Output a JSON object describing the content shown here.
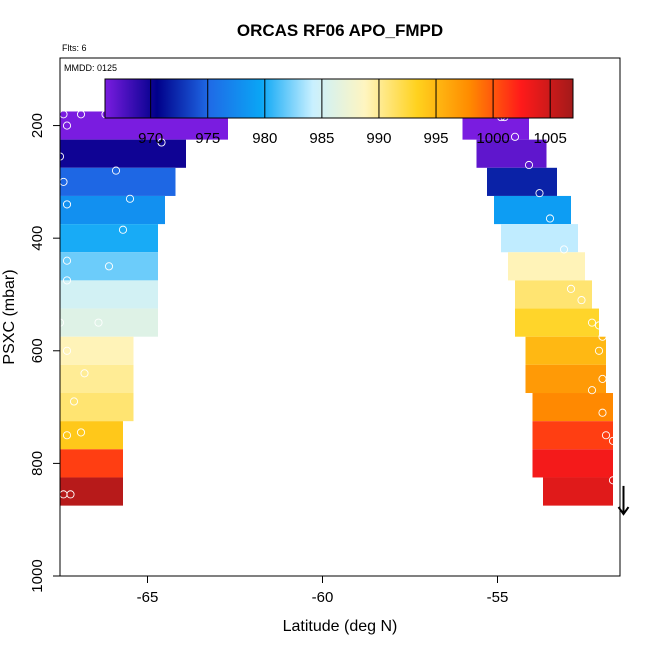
{
  "chart_data": {
    "type": "heatmap",
    "title": "ORCAS RF06 APO_FMPD",
    "flts_note": "Flts: 6",
    "date_note": "MMDD: 0125",
    "xlabel": "Latitude (deg N)",
    "ylabel": "PSXC (mbar)",
    "xlim": [
      -67.5,
      -51.5
    ],
    "ylim": [
      1000,
      80
    ],
    "x_ticks": [
      -65,
      -60,
      -55
    ],
    "x_tick_labels": [
      "-65",
      "-60",
      "-55"
    ],
    "y_ticks": [
      200,
      400,
      600,
      800,
      1000
    ],
    "y_tick_labels": [
      "200",
      "400",
      "600",
      "800",
      "1000"
    ],
    "colorbar": {
      "range": [
        966,
        1007
      ],
      "ticks": [
        970,
        975,
        980,
        985,
        990,
        995,
        1000,
        1005
      ],
      "tick_labels": [
        "970",
        "975",
        "980",
        "985",
        "990",
        "995",
        "1000",
        "1005"
      ],
      "stops": [
        "#7a1ce0",
        "#00008a",
        "#1f6ae6",
        "#0aa6f5",
        "#c9f0ff",
        "#fff5c0",
        "#ffd21e",
        "#ff8c00",
        "#ff1a1a",
        "#a31a1a"
      ]
    },
    "layers": [
      {
        "p_top": 175,
        "p_bot": 225,
        "left": {
          "x0": -67.5,
          "x1": -62.7,
          "v": 966
        },
        "right": {
          "x0": -56.0,
          "x1": -54.1,
          "v": 966
        }
      },
      {
        "p_top": 225,
        "p_bot": 275,
        "left": {
          "x0": -67.5,
          "x1": -63.9,
          "v": 970
        },
        "right": {
          "x0": -55.6,
          "x1": -53.6,
          "v": 967
        }
      },
      {
        "p_top": 275,
        "p_bot": 325,
        "left": {
          "x0": -67.5,
          "x1": -64.2,
          "v": 975
        },
        "right": {
          "x0": -55.3,
          "x1": -53.3,
          "v": 972
        }
      },
      {
        "p_top": 325,
        "p_bot": 375,
        "left": {
          "x0": -67.5,
          "x1": -64.5,
          "v": 978
        },
        "right": {
          "x0": -55.1,
          "x1": -52.9,
          "v": 979
        }
      },
      {
        "p_top": 375,
        "p_bot": 425,
        "left": {
          "x0": -67.5,
          "x1": -64.7,
          "v": 980
        },
        "right": {
          "x0": -54.9,
          "x1": -52.7,
          "v": 984
        }
      },
      {
        "p_top": 425,
        "p_bot": 475,
        "left": {
          "x0": -67.5,
          "x1": -64.7,
          "v": 982
        },
        "right": {
          "x0": -54.7,
          "x1": -52.5,
          "v": 989
        }
      },
      {
        "p_top": 475,
        "p_bot": 525,
        "left": {
          "x0": -67.5,
          "x1": -64.7,
          "v": 985
        },
        "right": {
          "x0": -54.5,
          "x1": -52.3,
          "v": 991
        }
      },
      {
        "p_top": 525,
        "p_bot": 575,
        "left": {
          "x0": -67.5,
          "x1": -64.7,
          "v": 986
        },
        "right": {
          "x0": -54.5,
          "x1": -52.1,
          "v": 993
        }
      },
      {
        "p_top": 575,
        "p_bot": 625,
        "left": {
          "x0": -67.5,
          "x1": -65.4,
          "v": 989
        },
        "right": {
          "x0": -54.2,
          "x1": -51.9,
          "v": 995
        }
      },
      {
        "p_top": 625,
        "p_bot": 675,
        "left": {
          "x0": -67.5,
          "x1": -65.4,
          "v": 990
        },
        "right": {
          "x0": -54.2,
          "x1": -51.9,
          "v": 997
        }
      },
      {
        "p_top": 675,
        "p_bot": 725,
        "left": {
          "x0": -67.5,
          "x1": -65.4,
          "v": 991
        },
        "right": {
          "x0": -54.0,
          "x1": -51.7,
          "v": 998
        }
      },
      {
        "p_top": 725,
        "p_bot": 775,
        "left": {
          "x0": -67.5,
          "x1": -65.7,
          "v": 994
        },
        "right": {
          "x0": -54.0,
          "x1": -51.7,
          "v": 1001
        }
      },
      {
        "p_top": 775,
        "p_bot": 825,
        "left": {
          "x0": -67.5,
          "x1": -65.7,
          "v": 1001
        },
        "right": {
          "x0": -54.0,
          "x1": -51.7,
          "v": 1003
        }
      },
      {
        "p_top": 825,
        "p_bot": 875,
        "left": {
          "x0": -67.5,
          "x1": -65.7,
          "v": 1006
        },
        "right": {
          "x0": -53.7,
          "x1": -51.7,
          "v": 1004
        }
      }
    ],
    "points": [
      [
        -67.4,
        180
      ],
      [
        -67.3,
        200
      ],
      [
        -66.9,
        180
      ],
      [
        -66.2,
        180
      ],
      [
        -65.7,
        180
      ],
      [
        -65.0,
        180
      ],
      [
        -64.5,
        180
      ],
      [
        -64.2,
        180
      ],
      [
        -64.0,
        180
      ],
      [
        -63.7,
        180
      ],
      [
        -63.6,
        180
      ],
      [
        -63.5,
        180
      ],
      [
        -63.4,
        180
      ],
      [
        -63.3,
        180
      ],
      [
        -63.2,
        180
      ],
      [
        -63.1,
        180
      ],
      [
        -63.0,
        180
      ],
      [
        -64.6,
        230
      ],
      [
        -67.5,
        255
      ],
      [
        -65.9,
        280
      ],
      [
        -67.4,
        300
      ],
      [
        -67.3,
        340
      ],
      [
        -65.5,
        330
      ],
      [
        -65.7,
        385
      ],
      [
        -67.3,
        440
      ],
      [
        -66.1,
        450
      ],
      [
        -67.3,
        475
      ],
      [
        -67.5,
        550
      ],
      [
        -66.4,
        550
      ],
      [
        -67.3,
        600
      ],
      [
        -66.8,
        640
      ],
      [
        -67.1,
        690
      ],
      [
        -67.3,
        750
      ],
      [
        -66.9,
        745
      ],
      [
        -67.4,
        855
      ],
      [
        -67.2,
        855
      ],
      [
        -56.2,
        180
      ],
      [
        -56.1,
        180
      ],
      [
        -55.5,
        180
      ],
      [
        -55.3,
        180
      ],
      [
        -54.9,
        185
      ],
      [
        -54.8,
        185
      ],
      [
        -54.5,
        220
      ],
      [
        -54.1,
        270
      ],
      [
        -53.8,
        320
      ],
      [
        -53.5,
        365
      ],
      [
        -53.1,
        420
      ],
      [
        -52.9,
        490
      ],
      [
        -52.6,
        510
      ],
      [
        -52.1,
        555
      ],
      [
        -52.3,
        550
      ],
      [
        -52.0,
        575
      ],
      [
        -52.1,
        600
      ],
      [
        -52.3,
        670
      ],
      [
        -52.0,
        650
      ],
      [
        -52.0,
        710
      ],
      [
        -51.9,
        750
      ],
      [
        -51.7,
        760
      ],
      [
        -51.7,
        830
      ]
    ],
    "arrow": {
      "x": -51.4,
      "p_from": 840,
      "p_to": 890
    }
  }
}
